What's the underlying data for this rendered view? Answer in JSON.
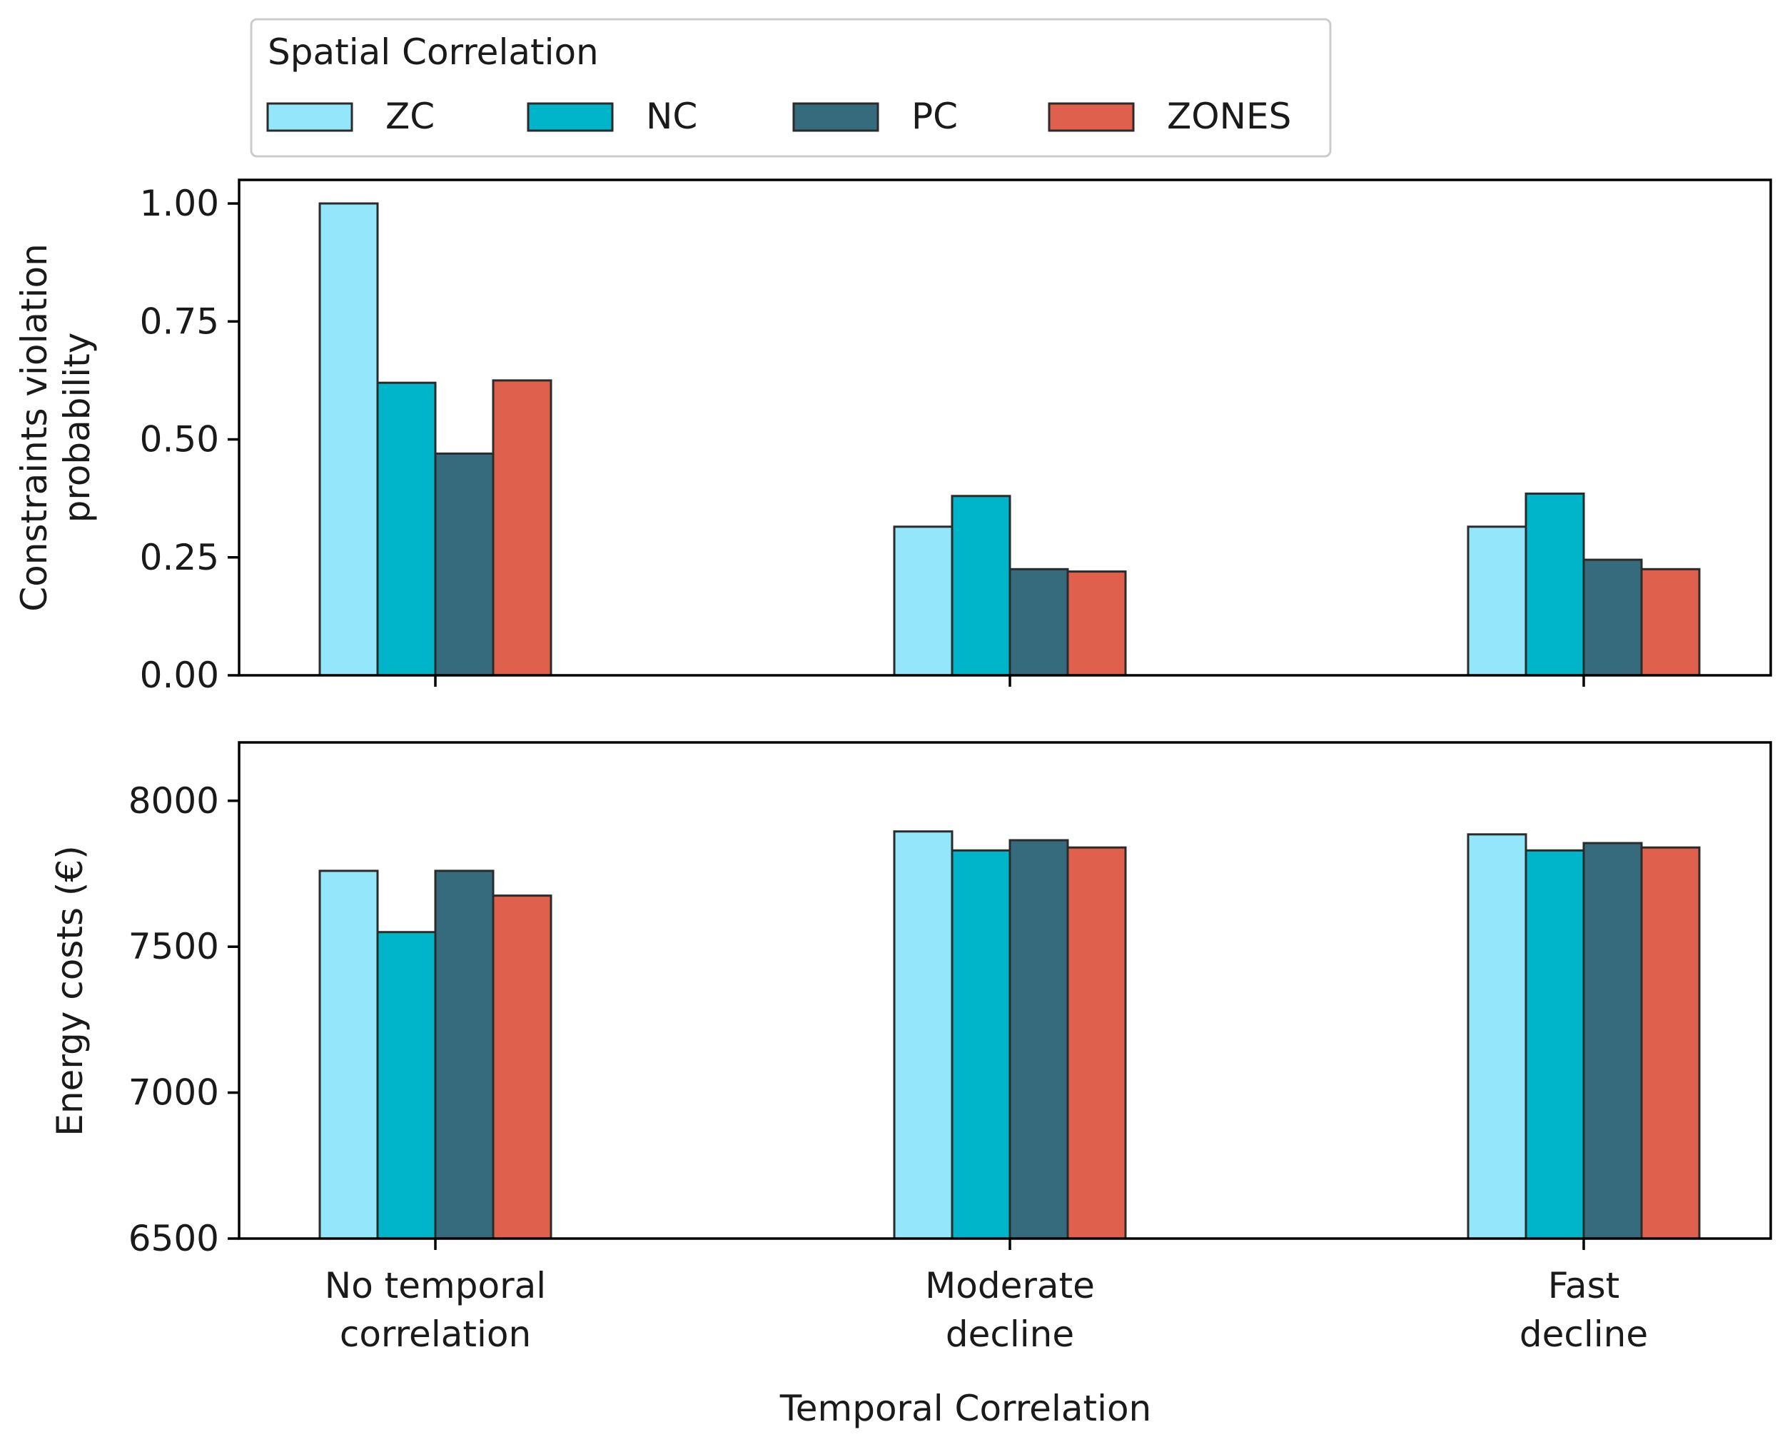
{
  "chart_data": [
    {
      "type": "bar",
      "panel": "top",
      "ylabel": [
        "Constraints violation",
        "probability"
      ],
      "ylim": [
        0,
        1.05
      ],
      "yticks": [
        "0.00",
        "0.25",
        "0.50",
        "0.75",
        "1.00"
      ],
      "categories": [
        "No temporal correlation",
        "Moderate decline",
        "Fast decline"
      ],
      "series": [
        {
          "name": "ZC",
          "values": [
            1.0,
            0.315,
            0.315
          ]
        },
        {
          "name": "NC",
          "values": [
            0.62,
            0.38,
            0.385
          ]
        },
        {
          "name": "PC",
          "values": [
            0.47,
            0.225,
            0.245
          ]
        },
        {
          "name": "ZONES",
          "values": [
            0.625,
            0.22,
            0.225
          ]
        }
      ]
    },
    {
      "type": "bar",
      "panel": "bottom",
      "ylabel": [
        "Energy costs (€)"
      ],
      "ylim": [
        6500,
        8200
      ],
      "yticks": [
        "6500",
        "7000",
        "7500",
        "8000"
      ],
      "categories": [
        "No temporal correlation",
        "Moderate decline",
        "Fast decline"
      ],
      "category_labels": [
        [
          "No temporal",
          "correlation"
        ],
        [
          "Moderate",
          "decline"
        ],
        [
          "Fast",
          "decline"
        ]
      ],
      "xlabel": "Temporal Correlation",
      "series": [
        {
          "name": "ZC",
          "values": [
            7760,
            7895,
            7885
          ]
        },
        {
          "name": "NC",
          "values": [
            7550,
            7830,
            7830
          ]
        },
        {
          "name": "PC",
          "values": [
            7760,
            7865,
            7855
          ]
        },
        {
          "name": "ZONES",
          "values": [
            7675,
            7840,
            7840
          ]
        }
      ]
    }
  ],
  "legend": {
    "title": "Spatial Correlation",
    "entries": [
      "ZC",
      "NC",
      "PC",
      "ZONES"
    ],
    "placement": "top"
  },
  "colors": {
    "ZC": "#94e6fb",
    "NC": "#00b4c9",
    "PC": "#356b7c",
    "ZONES": "#e0604e"
  }
}
